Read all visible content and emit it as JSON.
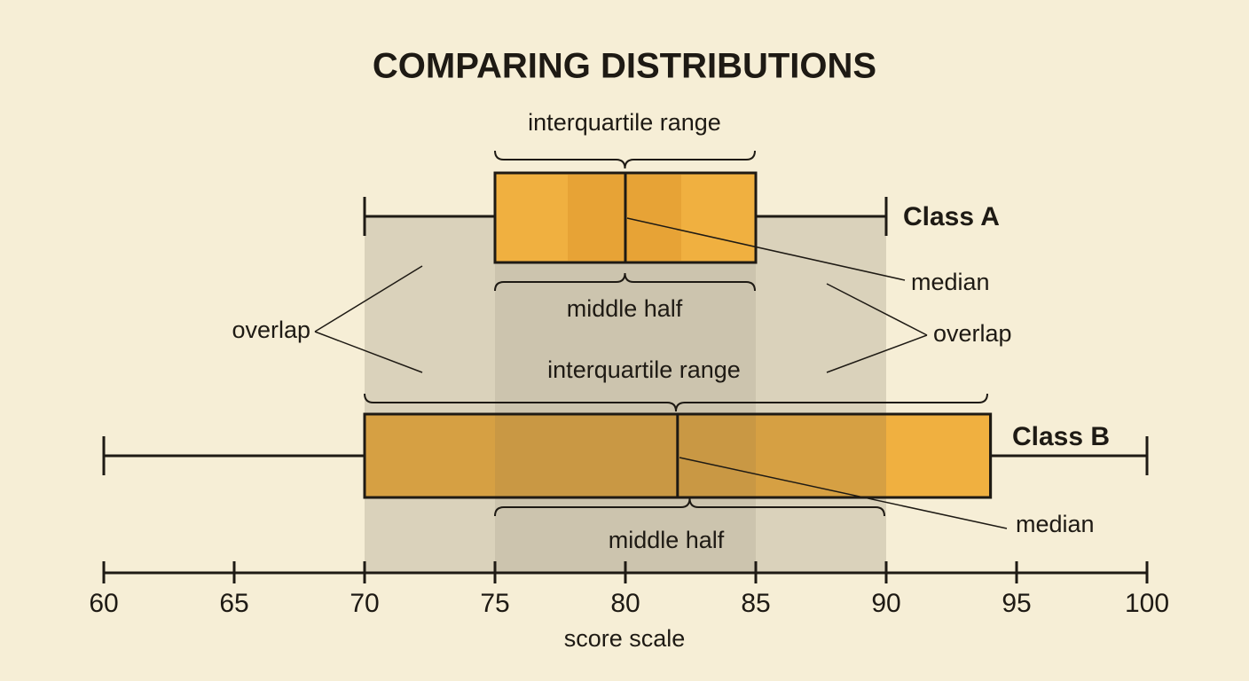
{
  "chart_data": {
    "type": "box",
    "title": "COMPARING DISTRIBUTIONS",
    "xlabel": "score scale",
    "xlim": [
      60,
      100
    ],
    "xticks": [
      60,
      65,
      70,
      75,
      80,
      85,
      90,
      95,
      100
    ],
    "overlap_label": "overlap",
    "series": [
      {
        "name": "Class A",
        "color": "#f0b040",
        "min": 70,
        "q1": 75,
        "median": 80,
        "q3": 85,
        "max": 90,
        "iqr_label": "interquartile range",
        "middle_label": "middle half",
        "median_label": "median"
      },
      {
        "name": "Class B",
        "color": "#f0b040",
        "min": 60,
        "q1": 70,
        "median": 82,
        "q3": 94,
        "max": 100,
        "iqr_label": "interquartile range",
        "middle_label": "middle half",
        "median_label": "median"
      }
    ]
  }
}
